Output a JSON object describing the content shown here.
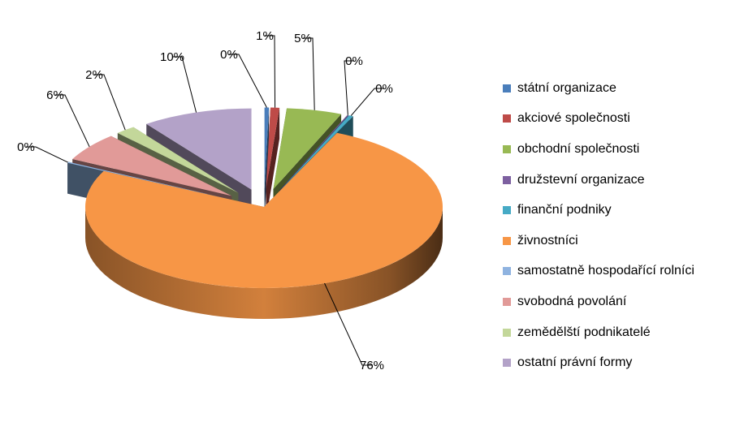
{
  "chart_data": {
    "type": "pie",
    "three_d": true,
    "exploded": true,
    "categories": [
      "státní organizace",
      "akciové společnosti",
      "obchodní společnosti",
      "družstevní organizace",
      "finanční podniky",
      "živnostníci",
      "samostatně hospodařící rolníci",
      "svobodná povolání",
      "zemědělští podnikatelé",
      "ostatní právní formy"
    ],
    "values": [
      0.4,
      0.8,
      5,
      0.1,
      0.4,
      75.6,
      0.2,
      5.7,
      1.8,
      10
    ],
    "data_labels": [
      "0%",
      "1%",
      "5%",
      "0%",
      "0%",
      "76%",
      "0%",
      "6%",
      "2%",
      "10%"
    ],
    "colors": [
      "#4a7ebb",
      "#be4b48",
      "#98b954",
      "#7d60a0",
      "#46aac5",
      "#f79646",
      "#8fb3e0",
      "#e19a98",
      "#c3d79a",
      "#b3a2c8"
    ],
    "legend_position": "right"
  }
}
